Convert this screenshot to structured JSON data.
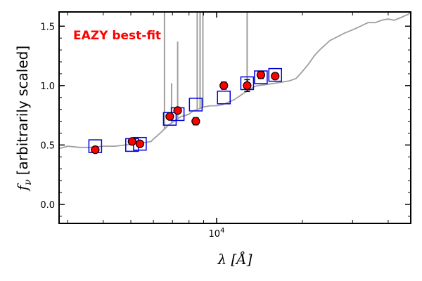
{
  "chart_data": {
    "type": "scatter",
    "title": "",
    "xlabel_sym": "λ",
    "xlabel_unit": "[Å]",
    "ylabel_sym": "f",
    "ylabel_sub": "ν",
    "ylabel_text": "[arbitrarily scaled]",
    "xscale": "log",
    "xlim": [
      2800,
      48000
    ],
    "ylim": [
      -0.16,
      1.62
    ],
    "x_ticks": [
      {
        "value": 10000,
        "base": "10",
        "exp": "4"
      }
    ],
    "y_ticks": [
      {
        "value": 0.0,
        "label": "0.0"
      },
      {
        "value": 0.5,
        "label": "0.5"
      },
      {
        "value": 1.0,
        "label": "1.0"
      },
      {
        "value": 1.5,
        "label": "1.5"
      }
    ],
    "annotation": {
      "text": "EAZY best-fit",
      "color": "#ff0000"
    },
    "colors": {
      "sed": "#a0a0a0",
      "model": "#0000dd",
      "observed": "#ff0000",
      "axis": "#000000"
    },
    "series": [
      {
        "kind": "line",
        "x": [
          2800,
          3000,
          3300,
          3600,
          4000,
          4400,
          4800,
          5200,
          5600,
          5900,
          6000,
          6200,
          6400,
          6600,
          6800,
          7000,
          7200,
          7500,
          7800,
          8000,
          8300,
          8600,
          9000,
          9500,
          10000,
          10500,
          11000,
          11500,
          12000,
          12500,
          13000,
          13500,
          14000,
          15000,
          16000,
          17000,
          18000,
          19000,
          20000,
          21000,
          22000,
          23000,
          24000,
          25000,
          26000,
          28000,
          30000,
          32000,
          34000,
          36000,
          38000,
          40000,
          42000,
          44000,
          46000,
          47000,
          48000
        ],
        "y": [
          0.47,
          0.49,
          0.48,
          0.48,
          0.49,
          0.49,
          0.5,
          0.51,
          0.52,
          0.53,
          0.55,
          0.58,
          0.61,
          0.64,
          0.67,
          0.69,
          0.71,
          0.74,
          0.75,
          0.76,
          0.79,
          0.8,
          0.82,
          0.83,
          0.83,
          0.84,
          0.86,
          0.88,
          0.91,
          0.94,
          0.96,
          0.99,
          1.0,
          1.01,
          1.02,
          1.03,
          1.04,
          1.06,
          1.12,
          1.18,
          1.25,
          1.3,
          1.34,
          1.38,
          1.4,
          1.44,
          1.47,
          1.5,
          1.53,
          1.53,
          1.55,
          1.56,
          1.55,
          1.57,
          1.59,
          1.6,
          1.62
        ]
      },
      {
        "kind": "emission-lines",
        "lines": [
          {
            "x": 6563,
            "y": 1.62
          },
          {
            "x": 6950,
            "y": 1.02
          },
          {
            "x": 7300,
            "y": 1.37
          },
          {
            "x": 8550,
            "y": 1.62
          },
          {
            "x": 8750,
            "y": 1.62
          },
          {
            "x": 8950,
            "y": 1.62
          },
          {
            "x": 12800,
            "y": 1.62
          }
        ]
      },
      {
        "kind": "squares",
        "x": [
          3750,
          5050,
          5380,
          6850,
          7300,
          8450,
          10600,
          12800,
          14300,
          16050
        ],
        "y": [
          0.49,
          0.5,
          0.51,
          0.72,
          0.76,
          0.84,
          0.9,
          1.02,
          1.07,
          1.09
        ]
      },
      {
        "kind": "points",
        "x": [
          3750,
          5050,
          5380,
          6850,
          7300,
          8450,
          10600,
          12800,
          14300,
          16050
        ],
        "y": [
          0.46,
          0.53,
          0.51,
          0.74,
          0.79,
          0.7,
          1.0,
          1.0,
          1.09,
          1.08
        ],
        "yerr": [
          0.01,
          0.01,
          0.01,
          0.02,
          0.02,
          0.03,
          0.03,
          0.05,
          0.03,
          0.02
        ]
      }
    ]
  }
}
